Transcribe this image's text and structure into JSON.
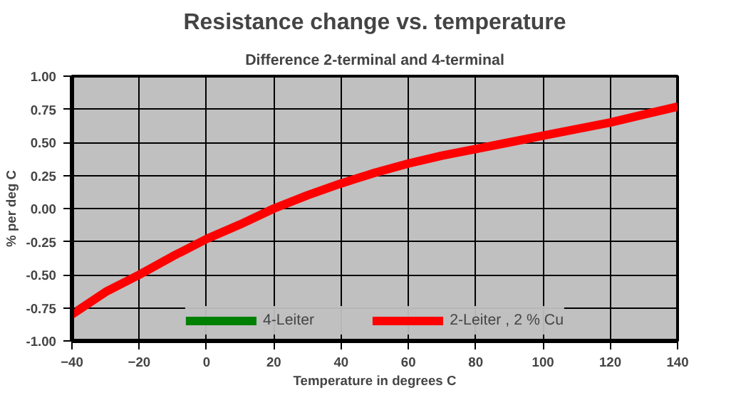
{
  "chart_data": {
    "type": "line",
    "title": "Resistance change vs. temperature",
    "subtitle": "Difference 2-terminal and 4-terminal",
    "xlabel": "Temperature in degrees C",
    "ylabel": "% per deg C",
    "x": [
      -40,
      -30,
      -20,
      -10,
      0,
      10,
      20,
      30,
      40,
      50,
      60,
      70,
      80,
      90,
      100,
      110,
      120,
      130,
      140
    ],
    "series": [
      {
        "name": "4-Leiter",
        "color": "#008000",
        "values": [
          null,
          null,
          null,
          null,
          null,
          null,
          null,
          null,
          null,
          null,
          null,
          null,
          null,
          null,
          null,
          null,
          null,
          null,
          null
        ]
      },
      {
        "name": "2-Leiter , 2 % Cu",
        "color": "#ff0000",
        "values": [
          -0.8,
          -0.63,
          -0.5,
          -0.36,
          -0.23,
          -0.12,
          0.0,
          0.1,
          0.19,
          0.27,
          0.34,
          0.4,
          0.45,
          0.5,
          0.55,
          0.6,
          0.65,
          0.71,
          0.77
        ]
      }
    ],
    "xlim": [
      -40,
      140
    ],
    "xticks": [
      -40,
      -20,
      0,
      20,
      40,
      60,
      80,
      100,
      120,
      140
    ],
    "ylim": [
      -1.0,
      1.0
    ],
    "yticks": [
      {
        "value": -1.0,
        "label": "-1.00"
      },
      {
        "value": -0.75,
        "label": "-0.75"
      },
      {
        "value": -0.5,
        "label": "-0.50"
      },
      {
        "value": -0.25,
        "label": "-0.25"
      },
      {
        "value": 0.0,
        "label": "0.00"
      },
      {
        "value": 0.25,
        "label": "0.25"
      },
      {
        "value": 0.5,
        "label": "0.50"
      },
      {
        "value": 0.75,
        "label": "0.75"
      },
      {
        "value": 1.0,
        "label": "1.00"
      }
    ],
    "grid": true,
    "legend": "bottom",
    "marker": "none",
    "line_style": "solid"
  }
}
